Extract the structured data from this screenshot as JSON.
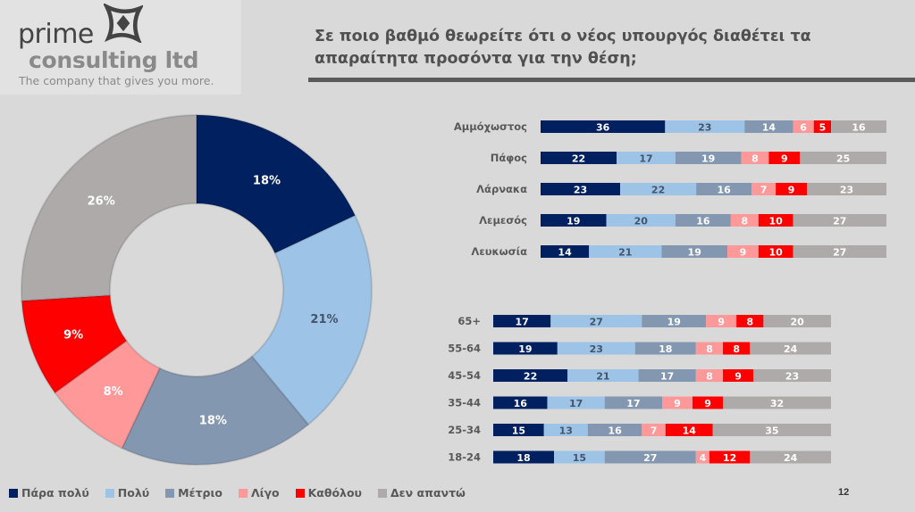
{
  "logo": {
    "brand_line1": "prime",
    "brand_line2": "consulting ltd",
    "tagline": "The company that gives you more."
  },
  "title": "Σε ποιο βαθμό θεωρείτε ότι ο νέος υπουργός διαθέτει τα απαραίτητα προσόντα για την θέση;",
  "page_number": "12",
  "categories": [
    "Πάρα πολύ",
    "Πολύ",
    "Μέτριο",
    "Λίγο",
    "Καθόλου",
    "Δεν απαντώ"
  ],
  "colors": [
    "#002060",
    "#9dc3e6",
    "#8497b0",
    "#ff9999",
    "#ff0000",
    "#aeaaaa"
  ],
  "label_colors": [
    "#ffffff",
    "#44546a",
    "#ffffff",
    "#ffffff",
    "#ffffff",
    "#ffffff"
  ],
  "chart_data": [
    {
      "type": "pie",
      "subtype": "donut",
      "title": "",
      "categories": [
        "Πάρα πολύ",
        "Πολύ",
        "Μέτριο",
        "Λίγο",
        "Καθόλου",
        "Δεν απαντώ"
      ],
      "values": [
        18,
        21,
        18,
        8,
        9,
        26
      ],
      "labels": [
        "18%",
        "21%",
        "18%",
        "8%",
        "9%",
        "26%"
      ],
      "legend": "bottom"
    },
    {
      "type": "bar",
      "subtype": "stacked-horizontal-100",
      "group": "region",
      "categories": [
        "Αμμόχωστος",
        "Πάφος",
        "Λάρνακα",
        "Λεμεσός",
        "Λευκωσία"
      ],
      "series": [
        {
          "name": "Πάρα πολύ",
          "values": [
            36,
            22,
            23,
            19,
            14
          ]
        },
        {
          "name": "Πολύ",
          "values": [
            23,
            17,
            22,
            20,
            21
          ]
        },
        {
          "name": "Μέτριο",
          "values": [
            14,
            19,
            16,
            16,
            19
          ]
        },
        {
          "name": "Λίγο",
          "values": [
            6,
            8,
            7,
            8,
            9
          ]
        },
        {
          "name": "Καθόλου",
          "values": [
            5,
            9,
            9,
            10,
            10
          ]
        },
        {
          "name": "Δεν απαντώ",
          "values": [
            16,
            25,
            23,
            27,
            27
          ]
        }
      ]
    },
    {
      "type": "bar",
      "subtype": "stacked-horizontal-100",
      "group": "age",
      "categories": [
        "65+",
        "55-64",
        "45-54",
        "35-44",
        "25-34",
        "18-24"
      ],
      "series": [
        {
          "name": "Πάρα πολύ",
          "values": [
            17,
            19,
            22,
            16,
            15,
            18
          ]
        },
        {
          "name": "Πολύ",
          "values": [
            27,
            23,
            21,
            17,
            13,
            15
          ]
        },
        {
          "name": "Μέτριο",
          "values": [
            19,
            18,
            17,
            17,
            16,
            27
          ]
        },
        {
          "name": "Λίγο",
          "values": [
            9,
            8,
            8,
            9,
            7,
            4
          ]
        },
        {
          "name": "Καθόλου",
          "values": [
            8,
            8,
            9,
            9,
            14,
            12
          ]
        },
        {
          "name": "Δεν απαντώ",
          "values": [
            20,
            24,
            23,
            32,
            35,
            24
          ]
        }
      ]
    }
  ]
}
